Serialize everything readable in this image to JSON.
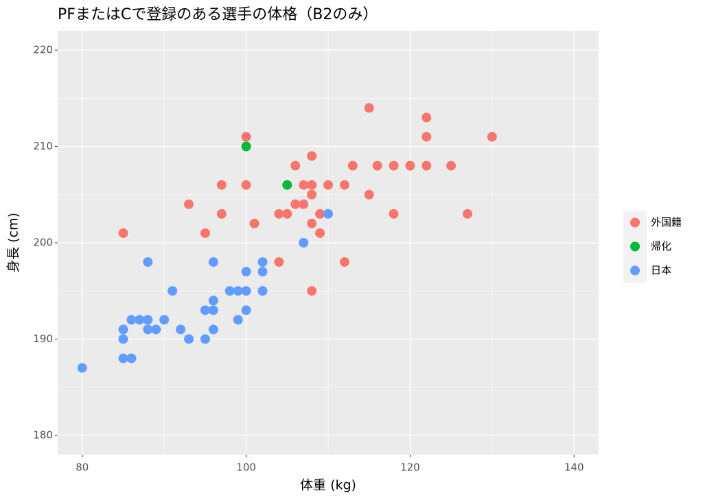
{
  "chart_data": {
    "type": "scatter",
    "title": "PFまたはCで登録のある選手の体格（B2のみ）",
    "x_label": "体重 (kg)",
    "y_label": "身長 (cm)",
    "xlim": [
      77,
      143
    ],
    "ylim": [
      178,
      222
    ],
    "xticks": [
      80,
      100,
      120,
      140
    ],
    "yticks": [
      180,
      190,
      200,
      210,
      220
    ],
    "grid": true,
    "legend_position": "right",
    "series": [
      {
        "name": "外国籍",
        "color": "#F8766D",
        "x": [
          85,
          93,
          95,
          97,
          97,
          100,
          100,
          101,
          104,
          104,
          105,
          106,
          106,
          107,
          107,
          108,
          108,
          108,
          108,
          108,
          109,
          109,
          110,
          112,
          112,
          113,
          115,
          115,
          116,
          118,
          118,
          120,
          122,
          122,
          122,
          125,
          127,
          130
        ],
        "values": [
          201,
          204,
          201,
          206,
          203,
          211,
          206,
          202,
          203,
          198,
          203,
          208,
          204,
          206,
          204,
          209,
          206,
          205,
          202,
          195,
          203,
          201,
          206,
          206,
          198,
          208,
          214,
          205,
          208,
          208,
          203,
          208,
          213,
          211,
          208,
          208,
          203,
          211
        ]
      },
      {
        "name": "帰化",
        "color": "#00BA38",
        "x": [
          100,
          105
        ],
        "values": [
          210,
          206
        ]
      },
      {
        "name": "日本",
        "color": "#619CFF",
        "x": [
          80,
          85,
          85,
          85,
          86,
          86,
          87,
          88,
          88,
          88,
          89,
          90,
          91,
          92,
          93,
          95,
          95,
          96,
          96,
          96,
          96,
          98,
          99,
          99,
          100,
          100,
          100,
          102,
          102,
          102,
          107,
          110
        ],
        "values": [
          187,
          191,
          190,
          188,
          192,
          188,
          192,
          198,
          192,
          191,
          191,
          192,
          195,
          191,
          190,
          193,
          190,
          198,
          194,
          193,
          191,
          195,
          195,
          192,
          197,
          195,
          193,
          198,
          197,
          195,
          200,
          203
        ]
      }
    ]
  }
}
